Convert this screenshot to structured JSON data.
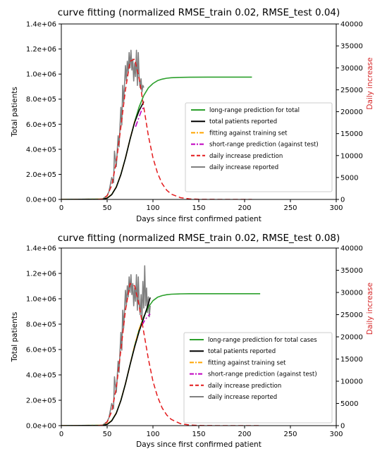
{
  "chart_data": [
    {
      "type": "line",
      "title": "curve fitting (normalized RMSE_train 0.02, RMSE_test 0.04)",
      "xlabel": "Days since first confirmed patient",
      "ylabel_left": "Total patients",
      "ylabel_right": "Daily increase",
      "xlim": [
        0,
        300
      ],
      "ylim_left": [
        0,
        1400000
      ],
      "ylim_right": [
        0,
        40000
      ],
      "x_ticks": [
        0,
        50,
        100,
        150,
        200,
        250,
        300
      ],
      "x_tick_labels": [
        "0",
        "50",
        "100",
        "150",
        "200",
        "250",
        "300"
      ],
      "y_left_ticks": [
        0,
        200000,
        400000,
        600000,
        800000,
        1000000,
        1200000,
        1400000
      ],
      "y_left_tick_labels": [
        "0.0e+00",
        "2.0e+05",
        "4.0e+05",
        "6.0e+05",
        "8.0e+05",
        "1.0e+06",
        "1.2e+06",
        "1.4e+06"
      ],
      "y_right_ticks": [
        0,
        5000,
        10000,
        15000,
        20000,
        25000,
        30000,
        35000,
        40000
      ],
      "y_right_tick_labels": [
        "0",
        "5000",
        "10000",
        "15000",
        "20000",
        "25000",
        "30000",
        "35000",
        "40000"
      ],
      "legend_position": "center-right",
      "series": [
        {
          "name": "long-range prediction for total",
          "color": "#2ca02c",
          "style": "solid",
          "axis": "left",
          "x": [
            0,
            45,
            50,
            55,
            60,
            65,
            70,
            75,
            80,
            85,
            90,
            95,
            100,
            105,
            110,
            115,
            120,
            130,
            140,
            160,
            180,
            208
          ],
          "y": [
            0,
            2000,
            12000,
            40000,
            100000,
            200000,
            330000,
            480000,
            620000,
            740000,
            830000,
            890000,
            925000,
            948000,
            960000,
            967000,
            971000,
            974000,
            975000,
            976000,
            976000,
            976000
          ]
        },
        {
          "name": "total patients reported",
          "color": "#000000",
          "style": "solid",
          "axis": "left",
          "x": [
            0,
            45,
            50,
            55,
            60,
            65,
            70,
            75,
            80,
            85,
            90
          ],
          "y": [
            0,
            1000,
            10000,
            38000,
            98000,
            198000,
            330000,
            480000,
            615000,
            710000,
            780000
          ]
        },
        {
          "name": "fitting against training set",
          "color": "#ffa500",
          "style": "dashdot",
          "axis": "left",
          "x": [
            0,
            45,
            50,
            55,
            60,
            65,
            70,
            75,
            80,
            81
          ],
          "y": [
            0,
            2000,
            12000,
            40000,
            100000,
            200000,
            330000,
            480000,
            620000,
            640000
          ]
        },
        {
          "name": "short-range prediction (against test)",
          "color": "#c000c0",
          "style": "dashdot",
          "axis": "left",
          "x": [
            81,
            84,
            87,
            90
          ],
          "y": [
            580000,
            640000,
            700000,
            740000
          ]
        },
        {
          "name": "daily increase prediction",
          "color": "#e31a1c",
          "style": "dashed",
          "axis": "right",
          "x": [
            40,
            45,
            50,
            55,
            60,
            65,
            70,
            75,
            80,
            85,
            90,
            95,
            100,
            105,
            110,
            115,
            120,
            130,
            140,
            150,
            160,
            180,
            208
          ],
          "y": [
            0,
            100,
            800,
            3200,
            8500,
            16500,
            25000,
            31500,
            32000,
            27500,
            21000,
            14500,
            9500,
            6000,
            3600,
            2100,
            1200,
            400,
            120,
            40,
            10,
            0,
            0
          ]
        },
        {
          "name": "daily increase reported",
          "color": "#808080",
          "style": "solid",
          "axis": "right",
          "x": [
            40,
            45,
            50,
            52,
            55,
            57,
            58,
            60,
            62,
            63,
            65,
            66,
            67,
            68,
            70,
            71,
            72,
            73,
            74,
            75,
            76,
            77,
            78,
            79,
            80,
            81,
            82,
            83,
            84,
            85,
            86,
            87,
            88,
            89,
            90
          ],
          "y": [
            0,
            100,
            900,
            1800,
            5000,
            3800,
            11000,
            7500,
            14500,
            12000,
            21000,
            17000,
            26000,
            22000,
            30500,
            27000,
            31500,
            29000,
            33500,
            30000,
            34000,
            29500,
            32000,
            27000,
            31000,
            28000,
            34000,
            26000,
            33500,
            27500,
            25500,
            27500,
            24500,
            26000,
            25500
          ]
        }
      ]
    },
    {
      "type": "line",
      "title": "curve fitting (normalized RMSE_train 0.02, RMSE_test 0.08)",
      "xlabel": "Days since first confirmed patient",
      "ylabel_left": "Total patients",
      "ylabel_right": "Daily increase",
      "xlim": [
        0,
        300
      ],
      "ylim_left": [
        0,
        1400000
      ],
      "ylim_right": [
        0,
        40000
      ],
      "x_ticks": [
        0,
        50,
        100,
        150,
        200,
        250,
        300
      ],
      "x_tick_labels": [
        "0",
        "50",
        "100",
        "150",
        "200",
        "250",
        "300"
      ],
      "y_left_ticks": [
        0,
        200000,
        400000,
        600000,
        800000,
        1000000,
        1200000,
        1400000
      ],
      "y_left_tick_labels": [
        "0.0e+00",
        "2.0e+05",
        "4.0e+05",
        "6.0e+05",
        "8.0e+05",
        "1.0e+06",
        "1.2e+06",
        "1.4e+06"
      ],
      "y_right_ticks": [
        0,
        5000,
        10000,
        15000,
        20000,
        25000,
        30000,
        35000,
        40000
      ],
      "y_right_tick_labels": [
        "0",
        "5000",
        "10000",
        "15000",
        "20000",
        "25000",
        "30000",
        "35000",
        "40000"
      ],
      "legend_position": "center-right",
      "series": [
        {
          "name": "long-range prediction for total cases",
          "color": "#2ca02c",
          "style": "solid",
          "axis": "left",
          "x": [
            0,
            45,
            50,
            55,
            60,
            65,
            70,
            75,
            80,
            85,
            90,
            95,
            100,
            105,
            110,
            115,
            120,
            130,
            140,
            160,
            180,
            217
          ],
          "y": [
            0,
            2000,
            12000,
            40000,
            100000,
            200000,
            330000,
            480000,
            630000,
            760000,
            860000,
            935000,
            985000,
            1012000,
            1025000,
            1032000,
            1036000,
            1039000,
            1040000,
            1040000,
            1040000,
            1040000
          ]
        },
        {
          "name": "total patients reported",
          "color": "#000000",
          "style": "solid",
          "axis": "left",
          "x": [
            0,
            45,
            50,
            55,
            60,
            65,
            70,
            75,
            80,
            85,
            90,
            95,
            97
          ],
          "y": [
            0,
            1000,
            10000,
            38000,
            98000,
            198000,
            330000,
            480000,
            620000,
            745000,
            850000,
            960000,
            1010000
          ]
        },
        {
          "name": "fitting against training set",
          "color": "#ffa500",
          "style": "dashdot",
          "axis": "left",
          "x": [
            0,
            45,
            50,
            55,
            60,
            65,
            70,
            75,
            80,
            85,
            88
          ],
          "y": [
            0,
            2000,
            12000,
            40000,
            100000,
            200000,
            330000,
            480000,
            630000,
            760000,
            820000
          ]
        },
        {
          "name": "short-range prediction (against test)",
          "color": "#c000c0",
          "style": "dashdot",
          "axis": "left",
          "x": [
            88,
            91,
            94,
            97
          ],
          "y": [
            790000,
            830000,
            860000,
            880000
          ]
        },
        {
          "name": "daily increase prediction",
          "color": "#e31a1c",
          "style": "dashed",
          "axis": "right",
          "x": [
            40,
            45,
            50,
            55,
            60,
            65,
            70,
            75,
            80,
            85,
            90,
            95,
            100,
            105,
            110,
            115,
            120,
            130,
            140,
            150,
            160,
            180,
            217
          ],
          "y": [
            0,
            100,
            800,
            3200,
            8500,
            17000,
            26000,
            32000,
            31500,
            27000,
            21000,
            15000,
            10000,
            6500,
            4000,
            2400,
            1400,
            450,
            150,
            50,
            15,
            0,
            0
          ]
        },
        {
          "name": "daily increase reported",
          "color": "#808080",
          "style": "solid",
          "axis": "right",
          "x": [
            40,
            45,
            50,
            52,
            55,
            57,
            58,
            60,
            62,
            63,
            65,
            66,
            67,
            68,
            70,
            71,
            72,
            73,
            74,
            75,
            76,
            77,
            78,
            79,
            80,
            81,
            82,
            83,
            84,
            85,
            86,
            87,
            88,
            89,
            90,
            91,
            92,
            93,
            94,
            95,
            96,
            97
          ],
          "y": [
            0,
            100,
            900,
            1800,
            5000,
            3800,
            11000,
            7500,
            14500,
            12000,
            21000,
            17000,
            26000,
            22000,
            30500,
            27000,
            31500,
            29000,
            33500,
            30000,
            34000,
            29500,
            32000,
            27000,
            31000,
            28000,
            34000,
            26000,
            33500,
            27500,
            25000,
            29500,
            24000,
            32500,
            26500,
            36000,
            27000,
            31000,
            25500,
            29000,
            24500,
            27000
          ]
        }
      ]
    }
  ]
}
